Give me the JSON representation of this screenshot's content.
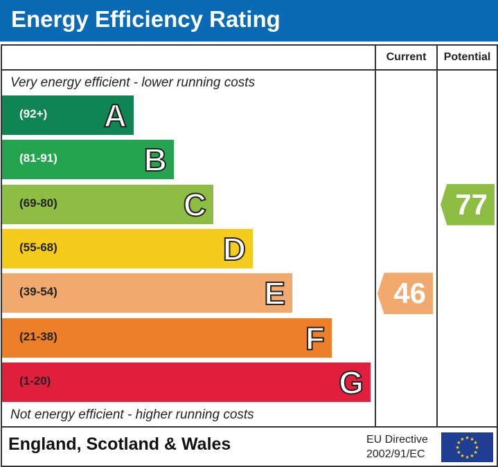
{
  "header": {
    "title": "Energy Efficiency Rating"
  },
  "columns": {
    "current": "Current",
    "potential": "Potential"
  },
  "notes": {
    "top": "Very energy efficient - lower running costs",
    "bottom": "Not energy efficient - higher running costs"
  },
  "chart_data": {
    "type": "bar",
    "categories": [
      "A",
      "B",
      "C",
      "D",
      "E",
      "F",
      "G"
    ],
    "bands": [
      {
        "letter": "A",
        "range": "(92+)",
        "color": "#0f8554",
        "text_color": "#ffffff"
      },
      {
        "letter": "B",
        "range": "(81-91)",
        "color": "#25a44f",
        "text_color": "#ffffff"
      },
      {
        "letter": "C",
        "range": "(69-80)",
        "color": "#8dbd43",
        "text_color": "#222222"
      },
      {
        "letter": "D",
        "range": "(55-68)",
        "color": "#f5cc1c",
        "text_color": "#222222"
      },
      {
        "letter": "E",
        "range": "(39-54)",
        "color": "#f2a96d",
        "text_color": "#222222"
      },
      {
        "letter": "F",
        "range": "(21-38)",
        "color": "#ec7f27",
        "text_color": "#222222"
      },
      {
        "letter": "G",
        "range": "(1-20)",
        "color": "#e11f3c",
        "text_color": "#222222"
      }
    ],
    "current": {
      "value": "46",
      "band": "E",
      "color": "#f2a96d"
    },
    "potential": {
      "value": "77",
      "band": "C",
      "color": "#8dbd43"
    }
  },
  "footer": {
    "region": "England, Scotland & Wales",
    "directive_line1": "EU Directive",
    "directive_line2": "2002/91/EC",
    "flag_icon": "eu-flag-icon"
  }
}
